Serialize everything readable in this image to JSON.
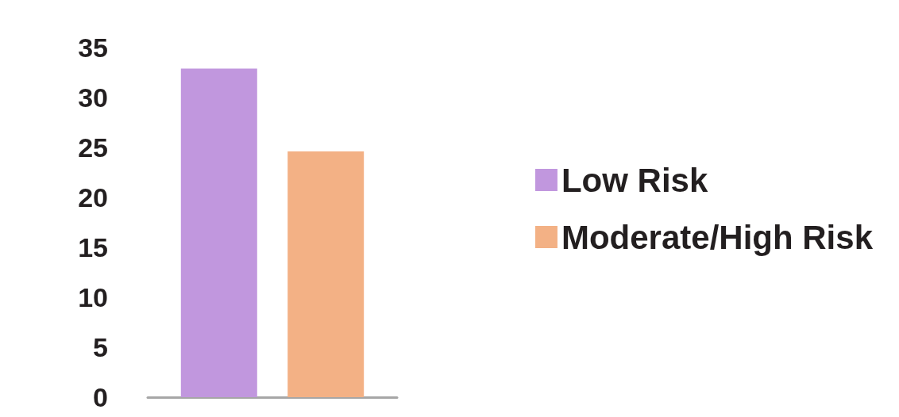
{
  "chart_data": {
    "type": "bar",
    "categories": [
      null
    ],
    "series": [
      {
        "name": "Low Risk",
        "color": "#c197de",
        "values": [
          32.9
        ]
      },
      {
        "name": "Moderate/High Risk",
        "color": "#f3b185",
        "values": [
          24.6
        ]
      }
    ],
    "ylim": [
      0,
      35
    ],
    "yticks": [
      0,
      5,
      10,
      15,
      20,
      25,
      30,
      35
    ],
    "grid": false,
    "legend": "right"
  }
}
